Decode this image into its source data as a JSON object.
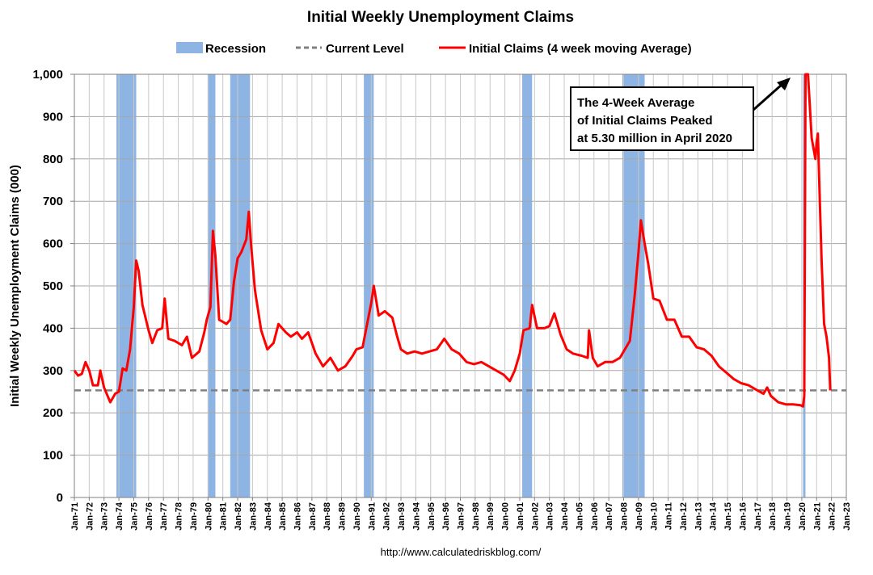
{
  "chart_data": {
    "type": "line",
    "title": "Initial Weekly Unemployment Claims",
    "xlabel": "",
    "ylabel": "Initial Weekly Unemployment Claims (000)",
    "ylim": [
      0,
      1000
    ],
    "yticks": [
      "0",
      "100",
      "200",
      "300",
      "400",
      "500",
      "600",
      "700",
      "800",
      "900",
      "1,000"
    ],
    "x_range": [
      "1971-01",
      "2023-01"
    ],
    "x_ticks": [
      "Jan-71",
      "Jan-72",
      "Jan-73",
      "Jan-74",
      "Jan-75",
      "Jan-76",
      "Jan-77",
      "Jan-78",
      "Jan-79",
      "Jan-80",
      "Jan-81",
      "Jan-82",
      "Jan-83",
      "Jan-84",
      "Jan-85",
      "Jan-86",
      "Jan-87",
      "Jan-88",
      "Jan-89",
      "Jan-90",
      "Jan-91",
      "Jan-92",
      "Jan-93",
      "Jan-94",
      "Jan-95",
      "Jan-96",
      "Jan-97",
      "Jan-98",
      "Jan-99",
      "Jan-00",
      "Jan-01",
      "Jan-02",
      "Jan-03",
      "Jan-04",
      "Jan-05",
      "Jan-06",
      "Jan-07",
      "Jan-08",
      "Jan-09",
      "Jan-10",
      "Jan-11",
      "Jan-12",
      "Jan-13",
      "Jan-14",
      "Jan-15",
      "Jan-16",
      "Jan-17",
      "Jan-18",
      "Jan-19",
      "Jan-20",
      "Jan-21",
      "Jan-22",
      "Jan-23"
    ],
    "grid": true,
    "legend_position": "top",
    "legend": [
      {
        "label": "Recession",
        "kind": "box",
        "color": "#8eb4e3"
      },
      {
        "label": "Current Level",
        "kind": "dashed",
        "color": "#808080"
      },
      {
        "label": "Initial Claims (4 week moving Average)",
        "kind": "line",
        "color": "#ff0000"
      }
    ],
    "recessions": [
      {
        "start": "1973-11",
        "end": "1975-03"
      },
      {
        "start": "1980-01",
        "end": "1980-07"
      },
      {
        "start": "1981-07",
        "end": "1982-11"
      },
      {
        "start": "1990-07",
        "end": "1991-03"
      },
      {
        "start": "2001-03",
        "end": "2001-11"
      },
      {
        "start": "2007-12",
        "end": "2009-06"
      },
      {
        "start": "2020-02",
        "end": "2020-04"
      }
    ],
    "current_level": 253,
    "series": [
      {
        "name": "Initial Claims (4 week moving Average)",
        "color": "#ff0000",
        "points": [
          [
            "1971-01",
            300
          ],
          [
            "1971-04",
            288
          ],
          [
            "1971-07",
            292
          ],
          [
            "1971-10",
            320
          ],
          [
            "1972-01",
            300
          ],
          [
            "1972-04",
            265
          ],
          [
            "1972-08",
            265
          ],
          [
            "1972-10",
            300
          ],
          [
            "1973-01",
            260
          ],
          [
            "1973-06",
            225
          ],
          [
            "1973-10",
            245
          ],
          [
            "1974-01",
            250
          ],
          [
            "1974-04",
            305
          ],
          [
            "1974-07",
            300
          ],
          [
            "1974-10",
            350
          ],
          [
            "1975-01",
            450
          ],
          [
            "1975-03",
            560
          ],
          [
            "1975-05",
            535
          ],
          [
            "1975-08",
            455
          ],
          [
            "1976-01",
            395
          ],
          [
            "1976-04",
            365
          ],
          [
            "1976-08",
            395
          ],
          [
            "1976-12",
            400
          ],
          [
            "1977-02",
            470
          ],
          [
            "1977-05",
            375
          ],
          [
            "1977-10",
            370
          ],
          [
            "1978-04",
            360
          ],
          [
            "1978-08",
            380
          ],
          [
            "1978-12",
            330
          ],
          [
            "1979-06",
            345
          ],
          [
            "1979-10",
            390
          ],
          [
            "1979-12",
            420
          ],
          [
            "1980-03",
            450
          ],
          [
            "1980-05",
            630
          ],
          [
            "1980-07",
            570
          ],
          [
            "1980-10",
            420
          ],
          [
            "1981-01",
            415
          ],
          [
            "1981-04",
            410
          ],
          [
            "1981-07",
            420
          ],
          [
            "1981-10",
            510
          ],
          [
            "1982-01",
            565
          ],
          [
            "1982-04",
            580
          ],
          [
            "1982-08",
            610
          ],
          [
            "1982-10",
            675
          ],
          [
            "1982-12",
            590
          ],
          [
            "1983-03",
            490
          ],
          [
            "1983-08",
            395
          ],
          [
            "1984-01",
            350
          ],
          [
            "1984-06",
            365
          ],
          [
            "1984-10",
            410
          ],
          [
            "1985-04",
            390
          ],
          [
            "1985-08",
            380
          ],
          [
            "1986-01",
            390
          ],
          [
            "1986-05",
            375
          ],
          [
            "1986-10",
            390
          ],
          [
            "1987-04",
            340
          ],
          [
            "1987-10",
            310
          ],
          [
            "1988-04",
            330
          ],
          [
            "1988-10",
            300
          ],
          [
            "1989-04",
            310
          ],
          [
            "1989-10",
            335
          ],
          [
            "1990-01",
            350
          ],
          [
            "1990-06",
            355
          ],
          [
            "1990-10",
            415
          ],
          [
            "1991-01",
            460
          ],
          [
            "1991-03",
            500
          ],
          [
            "1991-07",
            430
          ],
          [
            "1991-12",
            440
          ],
          [
            "1992-06",
            425
          ],
          [
            "1992-10",
            380
          ],
          [
            "1993-01",
            350
          ],
          [
            "1993-06",
            340
          ],
          [
            "1993-12",
            345
          ],
          [
            "1994-06",
            340
          ],
          [
            "1994-12",
            345
          ],
          [
            "1995-06",
            350
          ],
          [
            "1995-12",
            375
          ],
          [
            "1996-06",
            350
          ],
          [
            "1996-12",
            340
          ],
          [
            "1997-06",
            320
          ],
          [
            "1997-12",
            315
          ],
          [
            "1998-06",
            320
          ],
          [
            "1998-12",
            310
          ],
          [
            "1999-06",
            300
          ],
          [
            "1999-12",
            290
          ],
          [
            "2000-05",
            275
          ],
          [
            "2000-09",
            300
          ],
          [
            "2001-01",
            340
          ],
          [
            "2001-04",
            395
          ],
          [
            "2001-09",
            400
          ],
          [
            "2001-11",
            455
          ],
          [
            "2002-03",
            400
          ],
          [
            "2002-09",
            400
          ],
          [
            "2003-01",
            405
          ],
          [
            "2003-05",
            435
          ],
          [
            "2003-10",
            385
          ],
          [
            "2004-03",
            350
          ],
          [
            "2004-08",
            340
          ],
          [
            "2005-03",
            335
          ],
          [
            "2005-08",
            330
          ],
          [
            "2005-09",
            395
          ],
          [
            "2005-12",
            330
          ],
          [
            "2006-04",
            310
          ],
          [
            "2006-10",
            320
          ],
          [
            "2007-04",
            320
          ],
          [
            "2007-10",
            330
          ],
          [
            "2008-01",
            345
          ],
          [
            "2008-06",
            370
          ],
          [
            "2008-10",
            480
          ],
          [
            "2009-01",
            580
          ],
          [
            "2009-03",
            655
          ],
          [
            "2009-06",
            600
          ],
          [
            "2009-09",
            550
          ],
          [
            "2010-01",
            470
          ],
          [
            "2010-06",
            465
          ],
          [
            "2010-12",
            420
          ],
          [
            "2011-06",
            420
          ],
          [
            "2011-12",
            380
          ],
          [
            "2012-06",
            380
          ],
          [
            "2012-12",
            355
          ],
          [
            "2013-06",
            350
          ],
          [
            "2013-12",
            335
          ],
          [
            "2014-06",
            310
          ],
          [
            "2014-12",
            295
          ],
          [
            "2015-06",
            280
          ],
          [
            "2015-12",
            270
          ],
          [
            "2016-06",
            265
          ],
          [
            "2016-12",
            255
          ],
          [
            "2017-06",
            245
          ],
          [
            "2017-09",
            260
          ],
          [
            "2017-12",
            240
          ],
          [
            "2018-06",
            225
          ],
          [
            "2018-12",
            220
          ],
          [
            "2019-06",
            220
          ],
          [
            "2019-12",
            218
          ],
          [
            "2020-02",
            215
          ],
          [
            "2020-03",
            240
          ],
          [
            "2020-04",
            1000
          ],
          [
            "2020-06",
            1000
          ],
          [
            "2020-09",
            850
          ],
          [
            "2020-12",
            800
          ],
          [
            "2021-01",
            840
          ],
          [
            "2021-02",
            860
          ],
          [
            "2021-03",
            760
          ],
          [
            "2021-05",
            560
          ],
          [
            "2021-07",
            410
          ],
          [
            "2021-09",
            380
          ],
          [
            "2021-11",
            330
          ],
          [
            "2021-12",
            253
          ]
        ]
      }
    ],
    "annotation": "The 4-Week Average\nof Initial Claims Peaked\nat 5.30 million in April 2020"
  },
  "source": "http://www.calculatedriskblog.com/"
}
